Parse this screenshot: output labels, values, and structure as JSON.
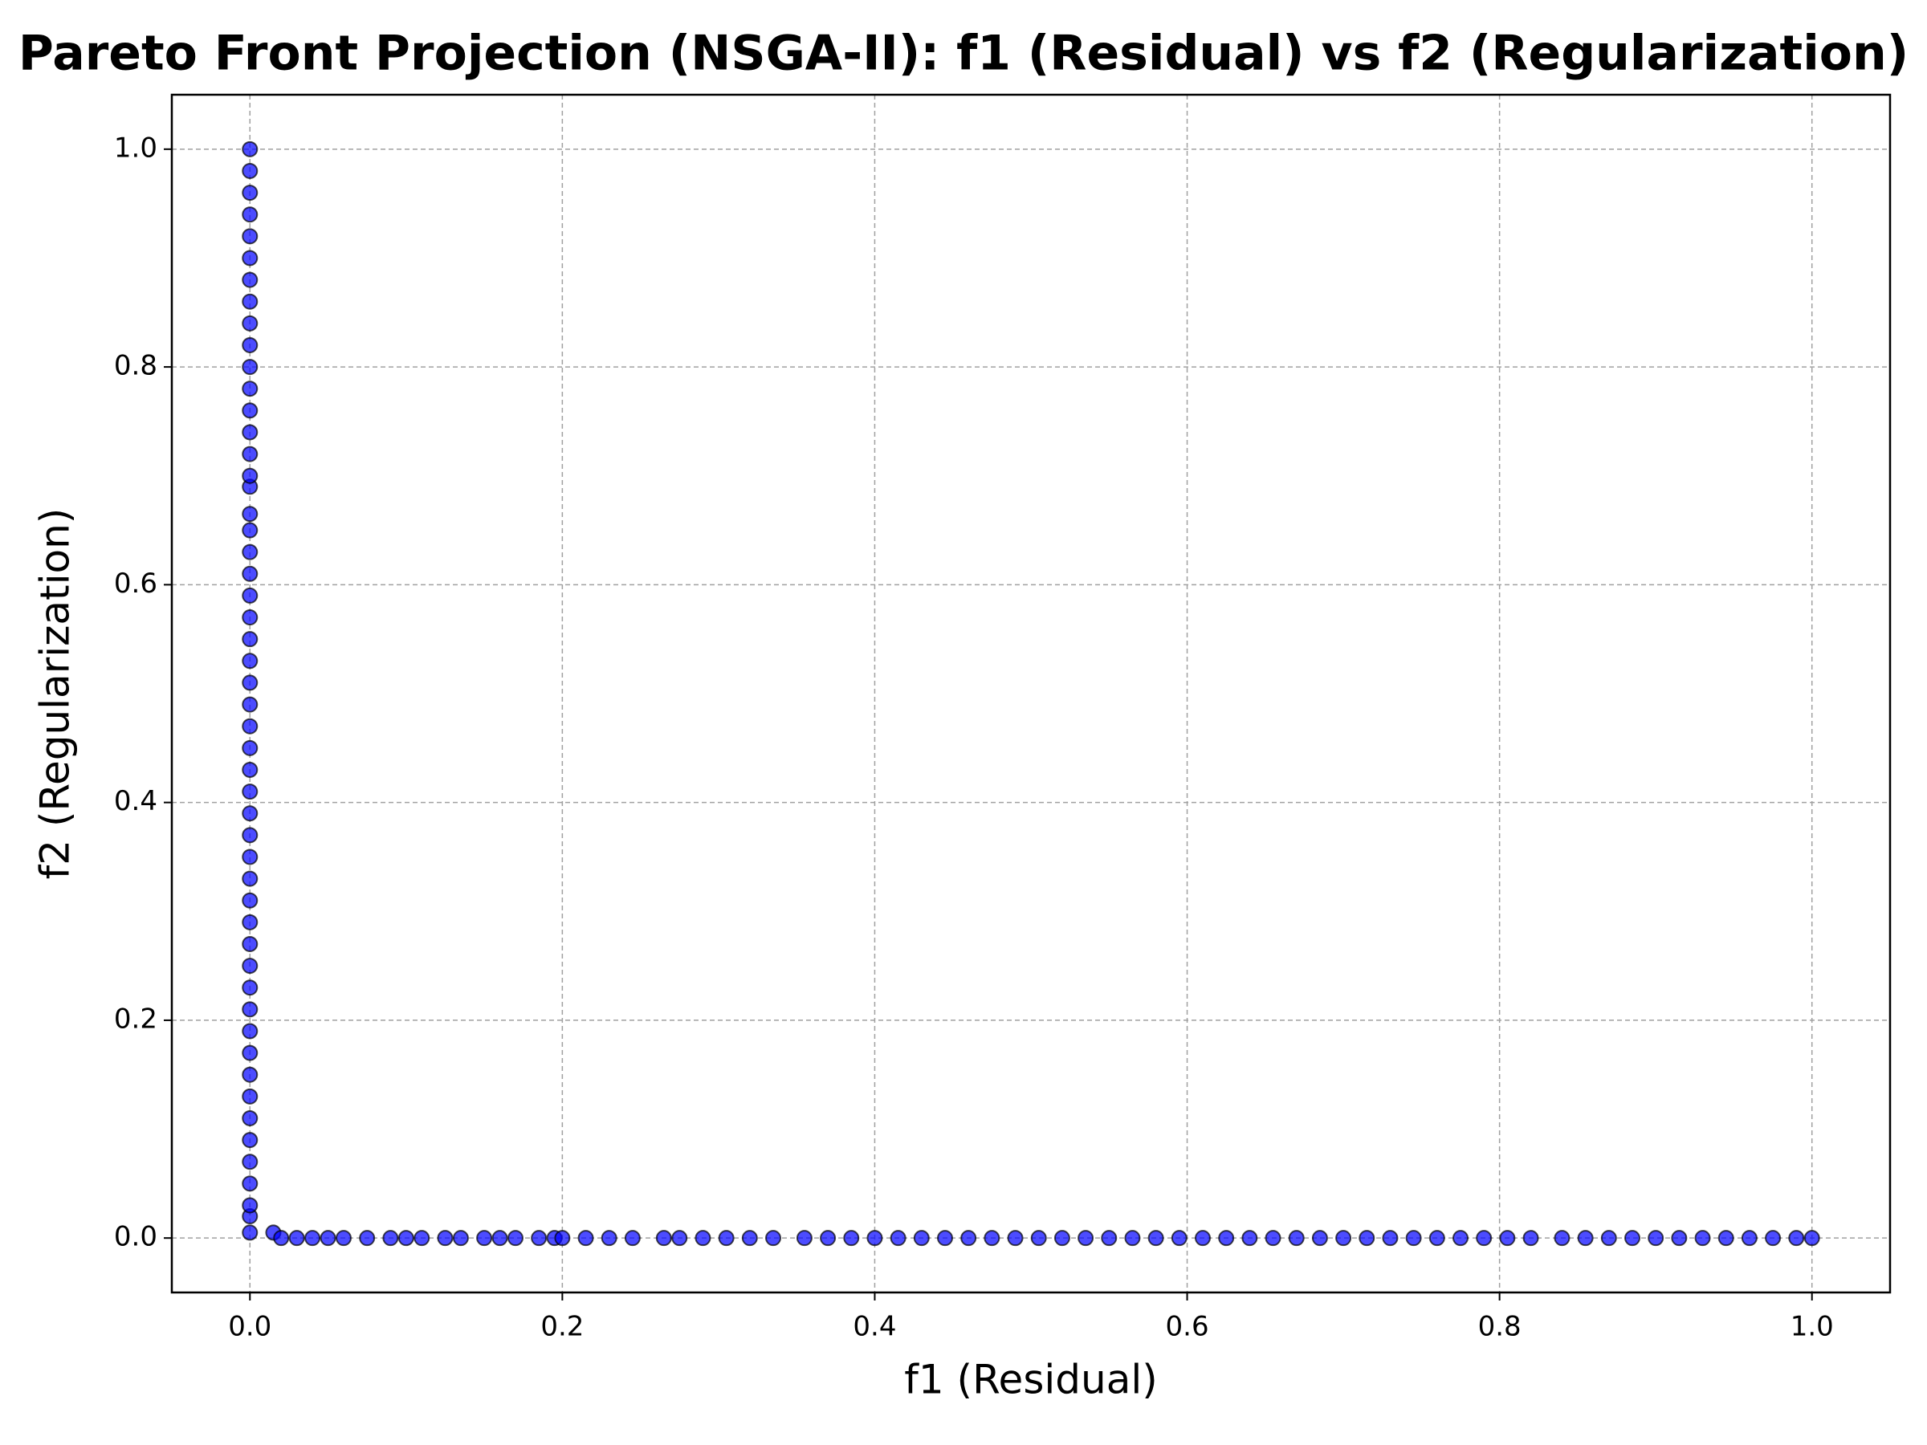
{
  "chart_data": {
    "type": "scatter",
    "title": "Pareto Front Projection (NSGA-II): f1 (Residual) vs f2 (Regularization)",
    "xlabel": "f1 (Residual)",
    "ylabel": "f2 (Regularization)",
    "x": [
      0,
      0,
      0,
      0,
      0,
      0,
      0,
      0,
      0,
      0,
      0,
      0,
      0,
      0,
      0,
      0,
      0,
      0,
      0,
      0,
      0,
      0,
      0,
      0,
      0,
      0,
      0,
      0,
      0,
      0,
      0,
      0,
      0,
      0,
      0,
      0,
      0,
      0,
      0,
      0,
      0,
      0,
      0,
      0,
      0,
      0,
      0,
      0,
      0,
      0,
      0,
      0,
      0.015,
      0.02,
      0.03,
      0.04,
      0.05,
      0.06,
      0.075,
      0.09,
      0.1,
      0.11,
      0.125,
      0.135,
      0.15,
      0.16,
      0.17,
      0.185,
      0.195,
      0.2,
      0.215,
      0.23,
      0.245,
      0.265,
      0.275,
      0.29,
      0.305,
      0.32,
      0.335,
      0.355,
      0.37,
      0.385,
      0.4,
      0.415,
      0.43,
      0.445,
      0.46,
      0.475,
      0.49,
      0.505,
      0.52,
      0.535,
      0.55,
      0.565,
      0.58,
      0.595,
      0.61,
      0.625,
      0.64,
      0.655,
      0.67,
      0.685,
      0.7,
      0.715,
      0.73,
      0.745,
      0.76,
      0.775,
      0.79,
      0.805,
      0.82,
      0.84,
      0.855,
      0.87,
      0.885,
      0.9,
      0.915,
      0.93,
      0.945,
      0.96,
      0.975,
      0.99,
      1.0
    ],
    "values": [
      0.005,
      0.02,
      0.03,
      0.05,
      0.07,
      0.09,
      0.11,
      0.13,
      0.15,
      0.17,
      0.19,
      0.21,
      0.23,
      0.25,
      0.27,
      0.29,
      0.31,
      0.33,
      0.35,
      0.37,
      0.39,
      0.41,
      0.43,
      0.45,
      0.47,
      0.49,
      0.51,
      0.53,
      0.55,
      0.57,
      0.59,
      0.61,
      0.63,
      0.65,
      0.665,
      0.69,
      0.7,
      0.72,
      0.74,
      0.76,
      0.78,
      0.8,
      0.82,
      0.84,
      0.86,
      0.88,
      0.9,
      0.92,
      0.94,
      0.96,
      0.98,
      1.0,
      0.005,
      0,
      0,
      0,
      0,
      0,
      0,
      0,
      0,
      0,
      0,
      0,
      0,
      0,
      0,
      0,
      0,
      0,
      0,
      0,
      0,
      0,
      0,
      0,
      0,
      0,
      0,
      0,
      0,
      0,
      0,
      0,
      0,
      0,
      0,
      0,
      0,
      0,
      0,
      0,
      0,
      0,
      0,
      0,
      0,
      0,
      0,
      0,
      0,
      0,
      0,
      0,
      0,
      0,
      0,
      0,
      0,
      0,
      0,
      0,
      0,
      0,
      0,
      0,
      0,
      0,
      0,
      0,
      0,
      0,
      0
    ],
    "color": "#0000ff",
    "edgecolor": "#000000",
    "xlim": [
      -0.05,
      1.05
    ],
    "ylim": [
      -0.05,
      1.05
    ],
    "xticks": [
      {
        "value": 0,
        "label": "0.0"
      },
      0.2,
      0.4,
      0.6,
      0.8,
      {
        "value": 1,
        "label": "1.0"
      }
    ],
    "yticks": [
      {
        "value": 0,
        "label": "0.0"
      },
      0.2,
      0.4,
      0.6,
      0.8,
      {
        "value": 1,
        "label": "1.0"
      }
    ],
    "grid": true
  }
}
